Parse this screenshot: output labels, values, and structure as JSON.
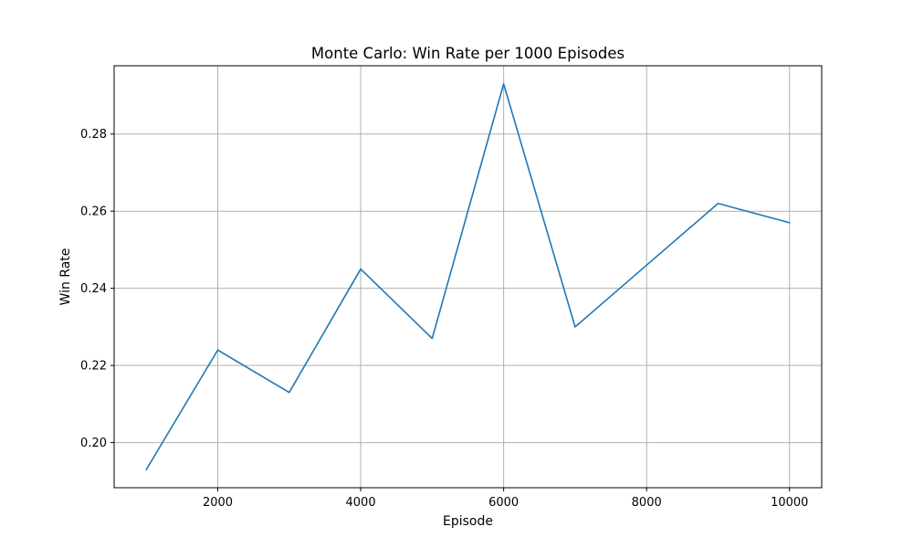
{
  "chart_data": {
    "type": "line",
    "title": "Monte Carlo: Win Rate per 1000 Episodes",
    "xlabel": "Episode",
    "ylabel": "Win Rate",
    "xlim": [
      550,
      10450
    ],
    "ylim": [
      0.1883,
      0.2977
    ],
    "grid": true,
    "x_ticks": [
      2000,
      4000,
      6000,
      8000,
      10000
    ],
    "y_ticks": [
      0.2,
      0.22,
      0.24,
      0.26,
      0.28
    ],
    "x_tick_labels": [
      "2000",
      "4000",
      "6000",
      "8000",
      "10000"
    ],
    "y_tick_labels": [
      "0.20",
      "0.22",
      "0.24",
      "0.26",
      "0.28"
    ],
    "series": [
      {
        "color": "#1f77b4",
        "x": [
          1000,
          2000,
          3000,
          4000,
          5000,
          6000,
          7000,
          8000,
          9000,
          10000
        ],
        "y": [
          0.193,
          0.224,
          0.213,
          0.245,
          0.227,
          0.293,
          0.23,
          0.246,
          0.262,
          0.257
        ]
      }
    ]
  }
}
